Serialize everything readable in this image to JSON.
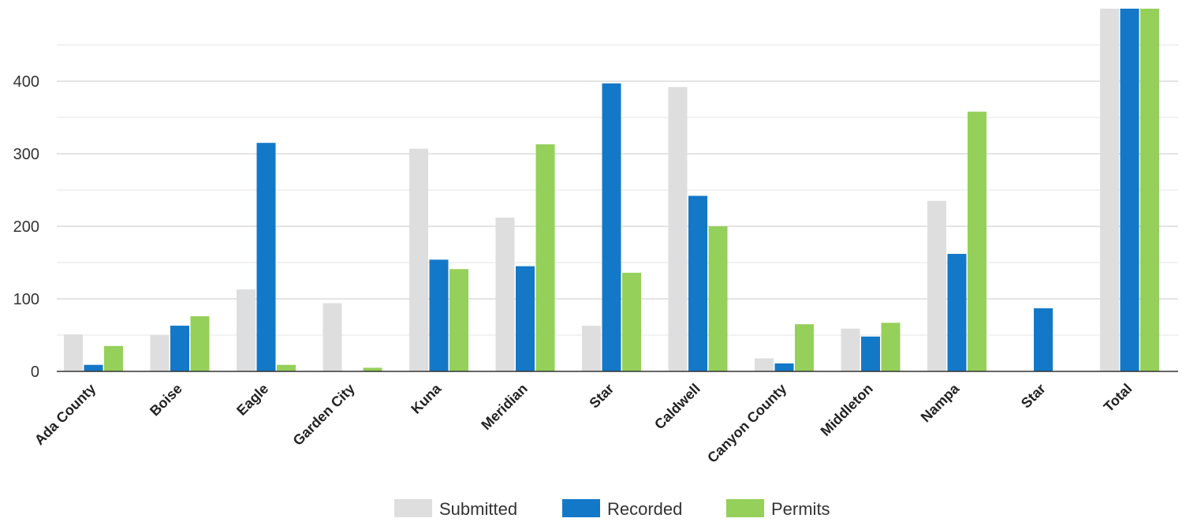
{
  "chart_data": {
    "type": "bar",
    "title": "",
    "xlabel": "",
    "ylabel": "",
    "ylim": [
      0,
      500
    ],
    "yticks": [
      0,
      100,
      200,
      300,
      400
    ],
    "grid": true,
    "legend_position": "bottom",
    "categories": [
      "Ada County",
      "Boise",
      "Eagle",
      "Garden City",
      "Kuna",
      "Meridian",
      "Star",
      "Caldwell",
      "Canyon County",
      "Middleton",
      "Nampa",
      "Star",
      "Total"
    ],
    "series": [
      {
        "name": "Submitted",
        "color": "#dedede",
        "values": [
          51,
          50,
          113,
          94,
          307,
          212,
          63,
          392,
          18,
          59,
          235,
          0,
          500
        ]
      },
      {
        "name": "Recorded",
        "color": "#1478c8",
        "values": [
          9,
          63,
          315,
          0,
          154,
          145,
          397,
          242,
          11,
          48,
          162,
          87,
          500
        ]
      },
      {
        "name": "Permits",
        "color": "#95d05a",
        "values": [
          35,
          76,
          9,
          5,
          141,
          313,
          136,
          200,
          65,
          67,
          358,
          0,
          500
        ]
      }
    ]
  }
}
